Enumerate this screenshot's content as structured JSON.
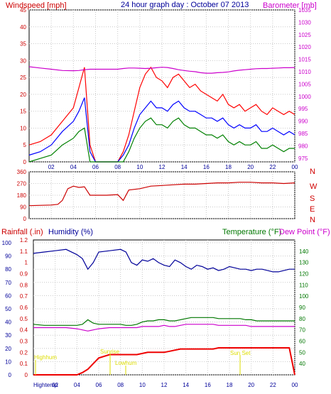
{
  "header": {
    "left": "Windspeed [mph]",
    "center": "24 hour graph day : October 07 2013",
    "right": "Barometer [mb]"
  },
  "panel3_labels": {
    "rainfall": "Rainfall (.in)",
    "humidity": "Humidity (%)",
    "temperature": "Temperature (°F)",
    "dewpoint": "Dew Point (°F)"
  },
  "cardinals": [
    "N",
    "W",
    "S",
    "E",
    "N"
  ],
  "annotations": {
    "highhum": "Highhum",
    "sunrise": "Sunrise",
    "lowhum": "Lowhum",
    "sunset": "Sun Set",
    "hightemp": "Hightemp"
  },
  "colors": {
    "wind_gust": "#ff0000",
    "wind_avg": "#0000ff",
    "wind_low": "#008000",
    "barometer": "#cc00cc",
    "direction": "#cc0000",
    "humidity": "#000099",
    "temperature": "#007700",
    "dewpoint": "#cc00cc",
    "rainfall": "#ee0000",
    "annotation": "#dddd00"
  },
  "chart_data": [
    {
      "type": "line",
      "x_ticks": [
        "02",
        "04",
        "06",
        "08",
        "10",
        "12",
        "14",
        "16",
        "18",
        "20",
        "22",
        "00"
      ],
      "y_left_ticks": [
        0,
        5,
        10,
        15,
        20,
        25,
        30,
        35,
        40,
        45
      ],
      "ylim_left": [
        0,
        45
      ],
      "y_right_ticks": [
        975,
        980,
        985,
        990,
        995,
        1000,
        1005,
        1010,
        1015,
        1020,
        1025,
        1030,
        1035
      ],
      "ylim_right": [
        973.5,
        1035
      ],
      "x": [
        0,
        1,
        2,
        3,
        4,
        4.5,
        5,
        5.5,
        6,
        7,
        8,
        8.5,
        9,
        9.5,
        10,
        10.5,
        11,
        11.5,
        12,
        12.5,
        13,
        13.5,
        14,
        14.5,
        15,
        15.5,
        16,
        16.5,
        17,
        17.5,
        18,
        18.5,
        19,
        19.5,
        20,
        20.5,
        21,
        21.5,
        22,
        22.5,
        23,
        23.5,
        24
      ],
      "series": [
        {
          "values": [
            5,
            6,
            8,
            12,
            16,
            22,
            28,
            5,
            0,
            0,
            0,
            3,
            8,
            15,
            22,
            26,
            28,
            25,
            24,
            22,
            25,
            26,
            24,
            22,
            23,
            21,
            20,
            19,
            18,
            20,
            17,
            16,
            17,
            15,
            16,
            17,
            15,
            14,
            16,
            15,
            14,
            15,
            14
          ]
        },
        {
          "values": [
            2,
            3,
            5,
            9,
            12,
            15,
            19,
            3,
            0,
            0,
            0,
            2,
            5,
            10,
            14,
            16,
            18,
            16,
            16,
            15,
            17,
            18,
            16,
            15,
            15,
            14,
            13,
            13,
            12,
            13,
            11,
            10,
            11,
            10,
            10,
            11,
            9,
            9,
            10,
            9,
            8,
            9,
            8
          ]
        },
        {
          "values": [
            0,
            1,
            2,
            5,
            7,
            9,
            10,
            0,
            0,
            0,
            0,
            0,
            3,
            7,
            10,
            12,
            13,
            11,
            11,
            10,
            12,
            13,
            11,
            10,
            10,
            9,
            8,
            8,
            7,
            8,
            6,
            5,
            6,
            5,
            5,
            6,
            4,
            4,
            5,
            4,
            3,
            4,
            4
          ]
        },
        {
          "values": [
            1012,
            1011.5,
            1011,
            1010.5,
            1010.4,
            1010.5,
            1010.8,
            1011,
            1011,
            1011,
            1011,
            1011.3,
            1011.5,
            1011.5,
            1011.4,
            1011.3,
            1011.4,
            1011.6,
            1011.8,
            1011.7,
            1011.3,
            1010.8,
            1010.5,
            1010.2,
            1010,
            1009.6,
            1009.4,
            1009.4,
            1009.6,
            1009.7,
            1009.9,
            1010.3,
            1010.6,
            1010.8,
            1011,
            1011.2,
            1011.3,
            1011.3,
            1011.4,
            1011.5,
            1011.6,
            1011.6,
            1011.7
          ]
        }
      ]
    },
    {
      "type": "line",
      "x_ticks": [
        "02",
        "04",
        "06",
        "08",
        "10",
        "12",
        "14",
        "16",
        "18",
        "20",
        "22",
        "00"
      ],
      "y_ticks": [
        0,
        90,
        180,
        270,
        360
      ],
      "ylim": [
        0,
        360
      ],
      "x": [
        0,
        2,
        2.6,
        3,
        3.5,
        4,
        4.5,
        5,
        5.5,
        6,
        7,
        8,
        8.5,
        9,
        10,
        11,
        12,
        13,
        14,
        15,
        16,
        17,
        18,
        19,
        20,
        21,
        22,
        23,
        24
      ],
      "series": [
        {
          "values": [
            100,
            105,
            110,
            140,
            230,
            250,
            240,
            245,
            180,
            180,
            180,
            185,
            140,
            220,
            230,
            250,
            255,
            260,
            265,
            265,
            270,
            275,
            275,
            280,
            280,
            275,
            275,
            270,
            275
          ]
        }
      ]
    },
    {
      "type": "line",
      "x_ticks": [
        "02",
        "04",
        "06",
        "08",
        "10",
        "12",
        "14",
        "16",
        "18",
        "20",
        "22",
        "00"
      ],
      "y_left_ticks": [
        0,
        0.1,
        0.2,
        0.3,
        0.4,
        0.5,
        0.6,
        0.7,
        0.8,
        0.9,
        1,
        1.1,
        1.2
      ],
      "ylim_left": [
        0,
        1.2
      ],
      "y_hum_ticks": [
        0,
        10,
        20,
        30,
        40,
        50,
        60,
        70,
        80,
        90,
        100
      ],
      "ylim_hum": [
        0,
        100
      ],
      "y_right_ticks": [
        40,
        50,
        60,
        70,
        80,
        90,
        100,
        110,
        120,
        130,
        140
      ],
      "ylim_right": [
        30,
        150
      ],
      "x": [
        0,
        1,
        2,
        3,
        4,
        4.5,
        5,
        5.5,
        6,
        7,
        8,
        8.5,
        9,
        9.5,
        10,
        10.5,
        11,
        11.5,
        12,
        12.5,
        13,
        13.5,
        14,
        14.5,
        15,
        15.5,
        16,
        16.5,
        17,
        17.5,
        18,
        18.5,
        19,
        19.5,
        20,
        20.5,
        21,
        21.5,
        22,
        22.5,
        23,
        23.5,
        24
      ],
      "series": [
        {
          "values": [
            0,
            0,
            0,
            0,
            0,
            0.02,
            0.05,
            0.1,
            0.15,
            0.18,
            0.18,
            0.18,
            0.18,
            0.18,
            0.19,
            0.2,
            0.2,
            0.2,
            0.2,
            0.21,
            0.22,
            0.23,
            0.23,
            0.23,
            0.23,
            0.23,
            0.23,
            0.23,
            0.24,
            0.24,
            0.24,
            0.24,
            0.24,
            0.24,
            0.24,
            0.24,
            0.24,
            0.24,
            0.24,
            0.24,
            0.24,
            0.24,
            0.0
          ]
        },
        {
          "values": [
            92,
            93,
            94,
            95,
            91,
            88,
            80,
            85,
            93,
            94,
            95,
            93,
            85,
            83,
            87,
            86,
            88,
            85,
            83,
            82,
            87,
            85,
            82,
            80,
            83,
            82,
            80,
            81,
            79,
            80,
            82,
            81,
            80,
            80,
            79,
            80,
            80,
            79,
            78,
            78,
            79,
            80,
            80
          ]
        },
        {
          "values": [
            75,
            74,
            74,
            74,
            74,
            75,
            79,
            76,
            75,
            75,
            75,
            74,
            74,
            75,
            77,
            78,
            78,
            79,
            79,
            78,
            78,
            79,
            80,
            81,
            81,
            81,
            81,
            81,
            80,
            80,
            80,
            80,
            80,
            79,
            79,
            78,
            78,
            78,
            78,
            78,
            78,
            78,
            78
          ]
        },
        {
          "values": [
            72,
            72,
            72,
            72,
            71,
            70,
            69,
            70,
            71,
            72,
            72,
            72,
            72,
            72,
            73,
            73,
            73,
            73,
            74,
            73,
            73,
            74,
            75,
            75,
            75,
            75,
            75,
            75,
            74,
            74,
            74,
            74,
            74,
            74,
            73,
            73,
            73,
            73,
            73,
            73,
            73,
            73,
            73
          ]
        }
      ]
    }
  ]
}
